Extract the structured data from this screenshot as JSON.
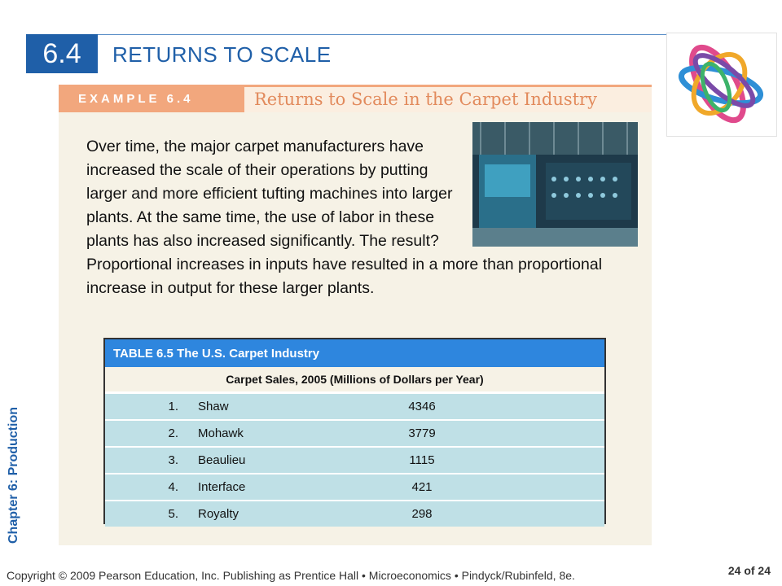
{
  "header": {
    "section_number": "6.4",
    "section_title": "RETURNS TO SCALE"
  },
  "example": {
    "tag": "EXAMPLE 6.4",
    "title": "Returns to Scale in the Carpet Industry"
  },
  "body": {
    "paragraph": "Over time, the major carpet manufacturers have increased the scale of their operations by putting larger and more efficient tufting machines into larger plants. At the same time, the use of labor in these plants has also increased significantly. The result? Proportional increases in inputs have resulted in a more than proportional increase in output for these larger plants."
  },
  "table": {
    "title": "TABLE 6.5   The U.S. Carpet Industry",
    "subtitle": "Carpet Sales, 2005 (Millions of Dollars per Year)",
    "rows": [
      {
        "rank": "1.",
        "company": "Shaw",
        "sales": "4346"
      },
      {
        "rank": "2.",
        "company": "Mohawk",
        "sales": "3779"
      },
      {
        "rank": "3.",
        "company": "Beaulieu",
        "sales": "1115"
      },
      {
        "rank": "4.",
        "company": "Interface",
        "sales": "421"
      },
      {
        "rank": "5.",
        "company": "Royalty",
        "sales": "298"
      }
    ]
  },
  "side_label": "Chapter 6:  Production",
  "footer": {
    "copyright": "Copyright © 2009 Pearson Education, Inc. Publishing as Prentice Hall  •  Microeconomics  •  Pindyck/Rubinfeld, 8e.",
    "page": "24 of 24"
  },
  "icons": {
    "logo": "interlocking-rings-logo",
    "photo": "carpet-factory-photo"
  },
  "colors": {
    "primary_blue": "#1f5fa8",
    "example_orange": "#f2a77d",
    "table_header": "#2e86de",
    "row_fill": "#bfe0e6"
  }
}
